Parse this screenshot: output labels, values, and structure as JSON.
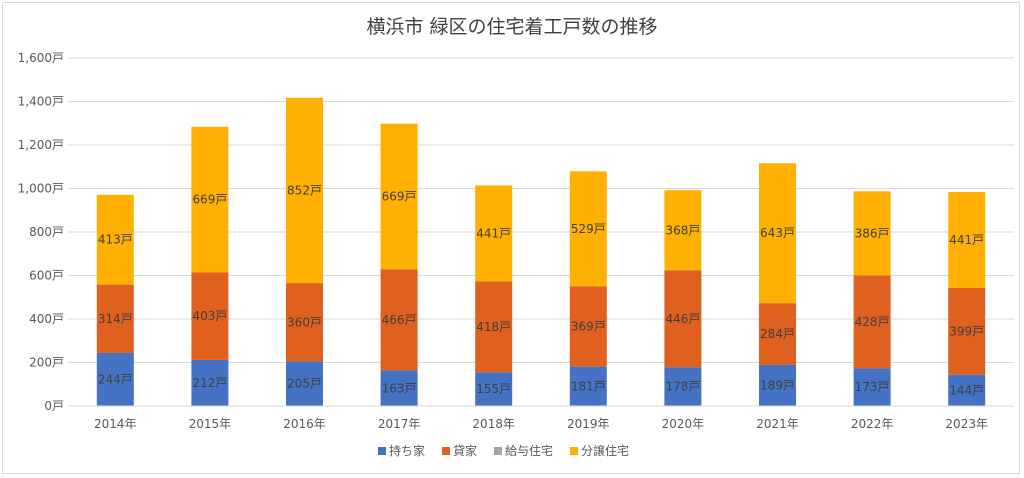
{
  "chart_data": {
    "type": "bar",
    "stacked": true,
    "title": "横浜市 緑区の住宅着工戸数の推移",
    "unit": "戸",
    "categories": [
      "2014年",
      "2015年",
      "2016年",
      "2017年",
      "2018年",
      "2019年",
      "2020年",
      "2021年",
      "2022年",
      "2023年"
    ],
    "series": [
      {
        "name": "持ち家",
        "color": "#4472c4",
        "values": [
          244,
          212,
          205,
          163,
          155,
          181,
          178,
          189,
          173,
          144
        ]
      },
      {
        "name": "貸家",
        "color": "#e0601f",
        "values": [
          314,
          403,
          360,
          466,
          418,
          369,
          446,
          284,
          428,
          399
        ]
      },
      {
        "name": "給与住宅",
        "color": "#a5a5a5",
        "values": [
          0,
          0,
          0,
          0,
          0,
          0,
          0,
          0,
          0,
          0
        ]
      },
      {
        "name": "分譲住宅",
        "color": "#ffb000",
        "values": [
          413,
          669,
          852,
          669,
          441,
          529,
          368,
          643,
          386,
          441
        ]
      }
    ],
    "y_ticks": [
      "0戸",
      "200戸",
      "400戸",
      "600戸",
      "800戸",
      "1,000戸",
      "1,200戸",
      "1,400戸",
      "1,600戸"
    ],
    "ylim": [
      0,
      1600
    ],
    "grid": true,
    "legend_position": "bottom"
  }
}
